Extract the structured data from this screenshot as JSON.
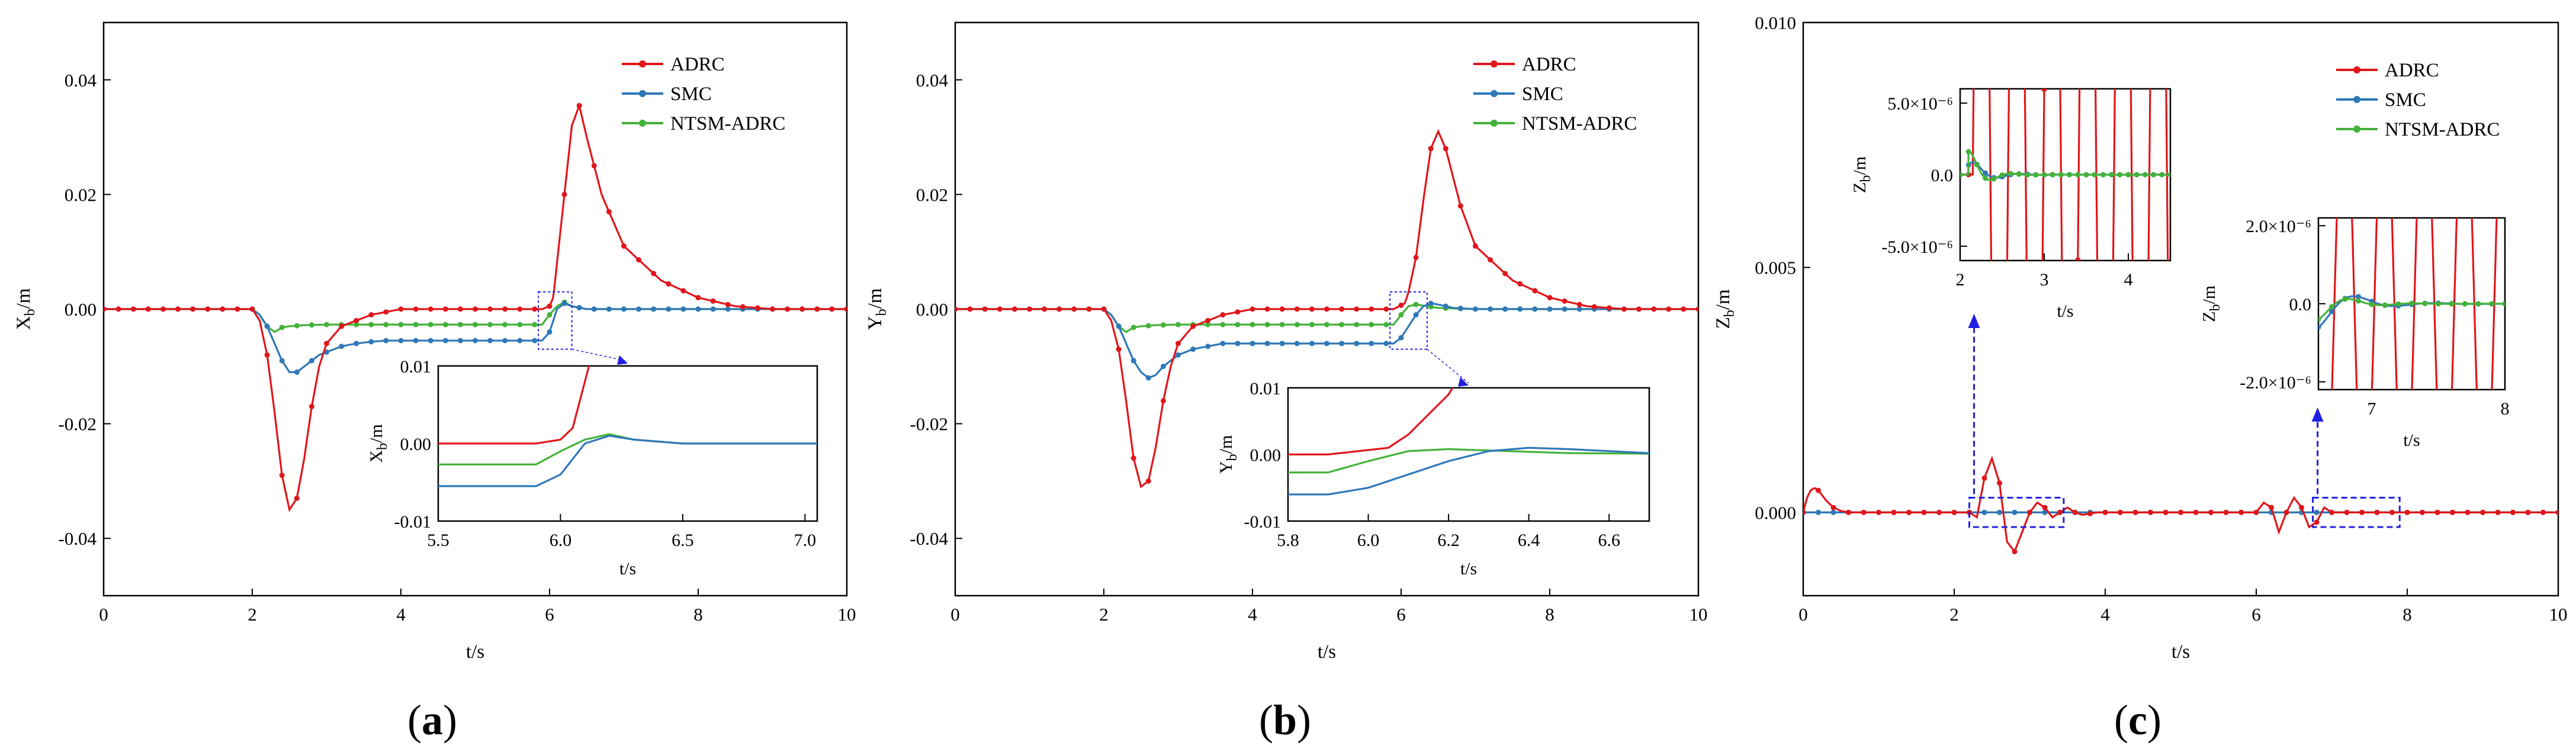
{
  "colors": {
    "ADRC": "#e0161b",
    "SMC": "#2f78b8",
    "NTSM-ADRC": "#44b23a",
    "zoom": "#2020e0",
    "frame": "#000000"
  },
  "chart_data": [
    {
      "id": "a",
      "caption": "(a)",
      "type": "line",
      "xlabel": "t/s",
      "ylabel": "X",
      "ylabel_sub": "b",
      "ylabel_unit": "/m",
      "xlim": [
        0,
        10
      ],
      "ylim": [
        -0.05,
        0.05
      ],
      "xticks": [
        "0",
        "2",
        "4",
        "6",
        "8",
        "10"
      ],
      "yticks": [
        "-0.04",
        "-0.02",
        "0.00",
        "0.02",
        "0.04"
      ],
      "ytick_values": [
        -0.04,
        -0.02,
        0,
        0.02,
        0.04
      ],
      "legend": [
        "ADRC",
        "SMC",
        "NTSM-ADRC"
      ],
      "series": [
        {
          "name": "ADRC",
          "x": [
            0,
            2,
            2.1,
            2.2,
            2.3,
            2.4,
            2.5,
            2.6,
            2.7,
            2.8,
            2.9,
            3.0,
            3.2,
            3.4,
            3.6,
            4,
            5,
            5.9,
            6.0,
            6.05,
            6.1,
            6.2,
            6.3,
            6.4,
            6.5,
            6.7,
            7.0,
            7.5,
            8,
            8.5,
            9,
            10
          ],
          "y": [
            0,
            0,
            -0.002,
            -0.008,
            -0.018,
            -0.029,
            -0.035,
            -0.033,
            -0.026,
            -0.017,
            -0.01,
            -0.006,
            -0.003,
            -0.002,
            -0.001,
            0,
            0,
            0,
            0.0005,
            0.002,
            0.008,
            0.02,
            0.032,
            0.0355,
            0.03,
            0.02,
            0.011,
            0.005,
            0.002,
            0.0005,
            0,
            0
          ]
        },
        {
          "name": "SMC",
          "x": [
            0,
            2,
            2.1,
            2.2,
            2.3,
            2.4,
            2.5,
            2.6,
            2.7,
            2.8,
            2.9,
            3.0,
            3.2,
            3.4,
            3.6,
            3.8,
            4,
            5,
            5.9,
            6.0,
            6.05,
            6.1,
            6.2,
            6.3,
            6.5,
            6.7,
            7,
            10
          ],
          "y": [
            0,
            0,
            -0.001,
            -0.003,
            -0.006,
            -0.009,
            -0.011,
            -0.011,
            -0.01,
            -0.009,
            -0.008,
            -0.0075,
            -0.0065,
            -0.006,
            -0.0057,
            -0.0055,
            -0.0055,
            -0.0055,
            -0.0055,
            -0.004,
            -0.002,
            0,
            0.001,
            0.0005,
            0,
            0,
            0,
            0
          ]
        },
        {
          "name": "NTSM-ADRC",
          "x": [
            0,
            2,
            2.1,
            2.2,
            2.3,
            2.4,
            2.5,
            2.7,
            3,
            4,
            5,
            5.9,
            6.0,
            6.1,
            6.2,
            6.3,
            6.5,
            7,
            10
          ],
          "y": [
            0,
            0,
            -0.001,
            -0.003,
            -0.004,
            -0.0032,
            -0.003,
            -0.0028,
            -0.0027,
            -0.0027,
            -0.0027,
            -0.0027,
            -0.001,
            0.0005,
            0.0012,
            0.0005,
            0,
            0,
            0
          ]
        }
      ],
      "inset": {
        "xlim": [
          5.5,
          7.05
        ],
        "ylim": [
          -0.01,
          0.01
        ],
        "xticks": [
          "5.5",
          "6.0",
          "6.5",
          "7.0"
        ],
        "xtick_values": [
          5.5,
          6.0,
          6.5,
          7.0
        ],
        "yticks": [
          "-0.01",
          "0.00",
          "0.01"
        ],
        "ytick_values": [
          -0.01,
          0,
          0.01
        ],
        "xlabel": "t/s",
        "ylabel": "X",
        "ylabel_sub": "b",
        "ylabel_unit": "/m"
      }
    },
    {
      "id": "b",
      "caption": "(b)",
      "type": "line",
      "xlabel": "t/s",
      "ylabel": "Y",
      "ylabel_sub": "b",
      "ylabel_unit": "/m",
      "xlim": [
        0,
        10
      ],
      "ylim": [
        -0.05,
        0.05
      ],
      "xticks": [
        "0",
        "2",
        "4",
        "6",
        "8",
        "10"
      ],
      "yticks": [
        "-0.04",
        "-0.02",
        "0.00",
        "0.02",
        "0.04"
      ],
      "ytick_values": [
        -0.04,
        -0.02,
        0,
        0.02,
        0.04
      ],
      "legend": [
        "ADRC",
        "SMC",
        "NTSM-ADRC"
      ],
      "series": [
        {
          "name": "ADRC",
          "x": [
            0,
            2,
            2.1,
            2.2,
            2.3,
            2.4,
            2.5,
            2.6,
            2.7,
            2.8,
            2.9,
            3.0,
            3.2,
            3.4,
            3.6,
            4,
            5,
            5.9,
            6.05,
            6.1,
            6.2,
            6.3,
            6.4,
            6.5,
            6.6,
            6.8,
            7.0,
            7.5,
            8,
            8.5,
            9,
            10
          ],
          "y": [
            0,
            0,
            -0.002,
            -0.007,
            -0.016,
            -0.026,
            -0.031,
            -0.03,
            -0.024,
            -0.016,
            -0.01,
            -0.006,
            -0.003,
            -0.002,
            -0.001,
            0,
            0,
            0,
            0.001,
            0.003,
            0.009,
            0.019,
            0.028,
            0.031,
            0.028,
            0.018,
            0.011,
            0.005,
            0.002,
            0.0005,
            0,
            0
          ]
        },
        {
          "name": "SMC",
          "x": [
            0,
            2,
            2.1,
            2.2,
            2.3,
            2.4,
            2.5,
            2.6,
            2.7,
            2.8,
            2.9,
            3.0,
            3.2,
            3.4,
            3.6,
            4,
            5,
            5.9,
            6.0,
            6.1,
            6.2,
            6.3,
            6.4,
            6.5,
            6.7,
            7,
            10
          ],
          "y": [
            0,
            0,
            -0.001,
            -0.003,
            -0.006,
            -0.009,
            -0.011,
            -0.012,
            -0.0115,
            -0.01,
            -0.009,
            -0.008,
            -0.007,
            -0.0065,
            -0.006,
            -0.006,
            -0.006,
            -0.006,
            -0.005,
            -0.003,
            -0.001,
            0.0005,
            0.001,
            0.0008,
            0.0002,
            0,
            0
          ]
        },
        {
          "name": "NTSM-ADRC",
          "x": [
            0,
            2,
            2.1,
            2.2,
            2.3,
            2.4,
            2.5,
            2.7,
            3,
            4,
            5,
            5.9,
            6.0,
            6.1,
            6.2,
            6.3,
            6.5,
            7,
            10
          ],
          "y": [
            0,
            0,
            -0.001,
            -0.003,
            -0.004,
            -0.0032,
            -0.003,
            -0.0028,
            -0.0027,
            -0.0027,
            -0.0027,
            -0.0027,
            -0.001,
            0.0005,
            0.0008,
            0.0006,
            0.0002,
            0,
            0
          ]
        }
      ],
      "inset": {
        "xlim": [
          5.8,
          6.7
        ],
        "ylim": [
          -0.01,
          0.01
        ],
        "xticks": [
          "5.8",
          "6.0",
          "6.2",
          "6.4",
          "6.6"
        ],
        "xtick_values": [
          5.8,
          6.0,
          6.2,
          6.4,
          6.6
        ],
        "yticks": [
          "-0.01",
          "0.00",
          "0.01"
        ],
        "ytick_values": [
          -0.01,
          0,
          0.01
        ],
        "xlabel": "t/s",
        "ylabel": "Y",
        "ylabel_sub": "b",
        "ylabel_unit": "/m"
      }
    },
    {
      "id": "c",
      "caption": "(c)",
      "type": "line",
      "xlabel": "t/s",
      "ylabel": "Z",
      "ylabel_sub": "b",
      "ylabel_unit": "/m",
      "xlim": [
        0,
        10
      ],
      "ylim": [
        -0.0017,
        0.01
      ],
      "xticks": [
        "0",
        "2",
        "4",
        "6",
        "8",
        "10"
      ],
      "yticks": [
        "0.000",
        "0.005",
        "0.010"
      ],
      "ytick_values": [
        0,
        0.005,
        0.01
      ],
      "legend": [
        "ADRC",
        "SMC",
        "NTSM-ADRC"
      ],
      "series": [
        {
          "name": "ADRC",
          "x": [
            0,
            0.05,
            0.1,
            0.15,
            0.2,
            0.3,
            0.4,
            0.5,
            0.6,
            0.8,
            2.0,
            2.2,
            2.3,
            2.4,
            2.5,
            2.6,
            2.7,
            2.8,
            2.9,
            3.0,
            3.1,
            3.2,
            3.3,
            3.4,
            3.5,
            3.6,
            3.7,
            3.9,
            6.0,
            6.1,
            6.2,
            6.3,
            6.4,
            6.5,
            6.6,
            6.7,
            6.8,
            6.9,
            7.0,
            7.2,
            7.5,
            8,
            10
          ],
          "y": [
            0,
            0.0003,
            0.00045,
            0.0005,
            0.00045,
            0.00025,
            0.0001,
            3e-05,
            0,
            0,
            0,
            0,
            -0.0001,
            0.0007,
            0.0011,
            0.0006,
            -0.0006,
            -0.0008,
            -0.0004,
            0,
            0.0002,
            0.0001,
            -0.0001,
            0,
            0.0001,
            0,
            -5e-05,
            0,
            0,
            0.0002,
            0.0001,
            -0.0004,
            0,
            0.0003,
            0.0001,
            -0.0003,
            -0.0002,
            0.0001,
            0,
            0,
            0,
            0,
            0
          ]
        },
        {
          "name": "SMC",
          "x": [
            0,
            10
          ],
          "y": [
            0,
            0
          ]
        },
        {
          "name": "NTSM-ADRC",
          "x": [
            0,
            10
          ],
          "y": [
            0,
            0
          ]
        }
      ],
      "insets": [
        {
          "xlim": [
            2.0,
            4.5
          ],
          "ylim": [
            -6e-06,
            6e-06
          ],
          "xticks": [
            "2",
            "3",
            "4"
          ],
          "xtick_values": [
            2,
            3,
            4
          ],
          "yticks": [
            "5.0×10⁻⁶",
            "0.0",
            "-5.0×10⁻⁶"
          ],
          "ytick_values": [
            5e-06,
            0,
            -5e-06
          ],
          "xlabel": "t/s",
          "ylabel": "Z",
          "ylabel_sub": "b",
          "ylabel_unit": "/m"
        },
        {
          "xlim": [
            6.6,
            8.0
          ],
          "ylim": [
            -2.2e-06,
            2.2e-06
          ],
          "xticks": [
            "7",
            "8"
          ],
          "xtick_values": [
            7,
            8
          ],
          "yticks": [
            "2.0×10⁻⁶",
            "0.0",
            "-2.0×10⁻⁶"
          ],
          "ytick_values": [
            2e-06,
            0,
            -2e-06
          ],
          "xlabel": "t/s",
          "ylabel": "Z",
          "ylabel_sub": "b",
          "ylabel_unit": "/m"
        }
      ]
    }
  ]
}
